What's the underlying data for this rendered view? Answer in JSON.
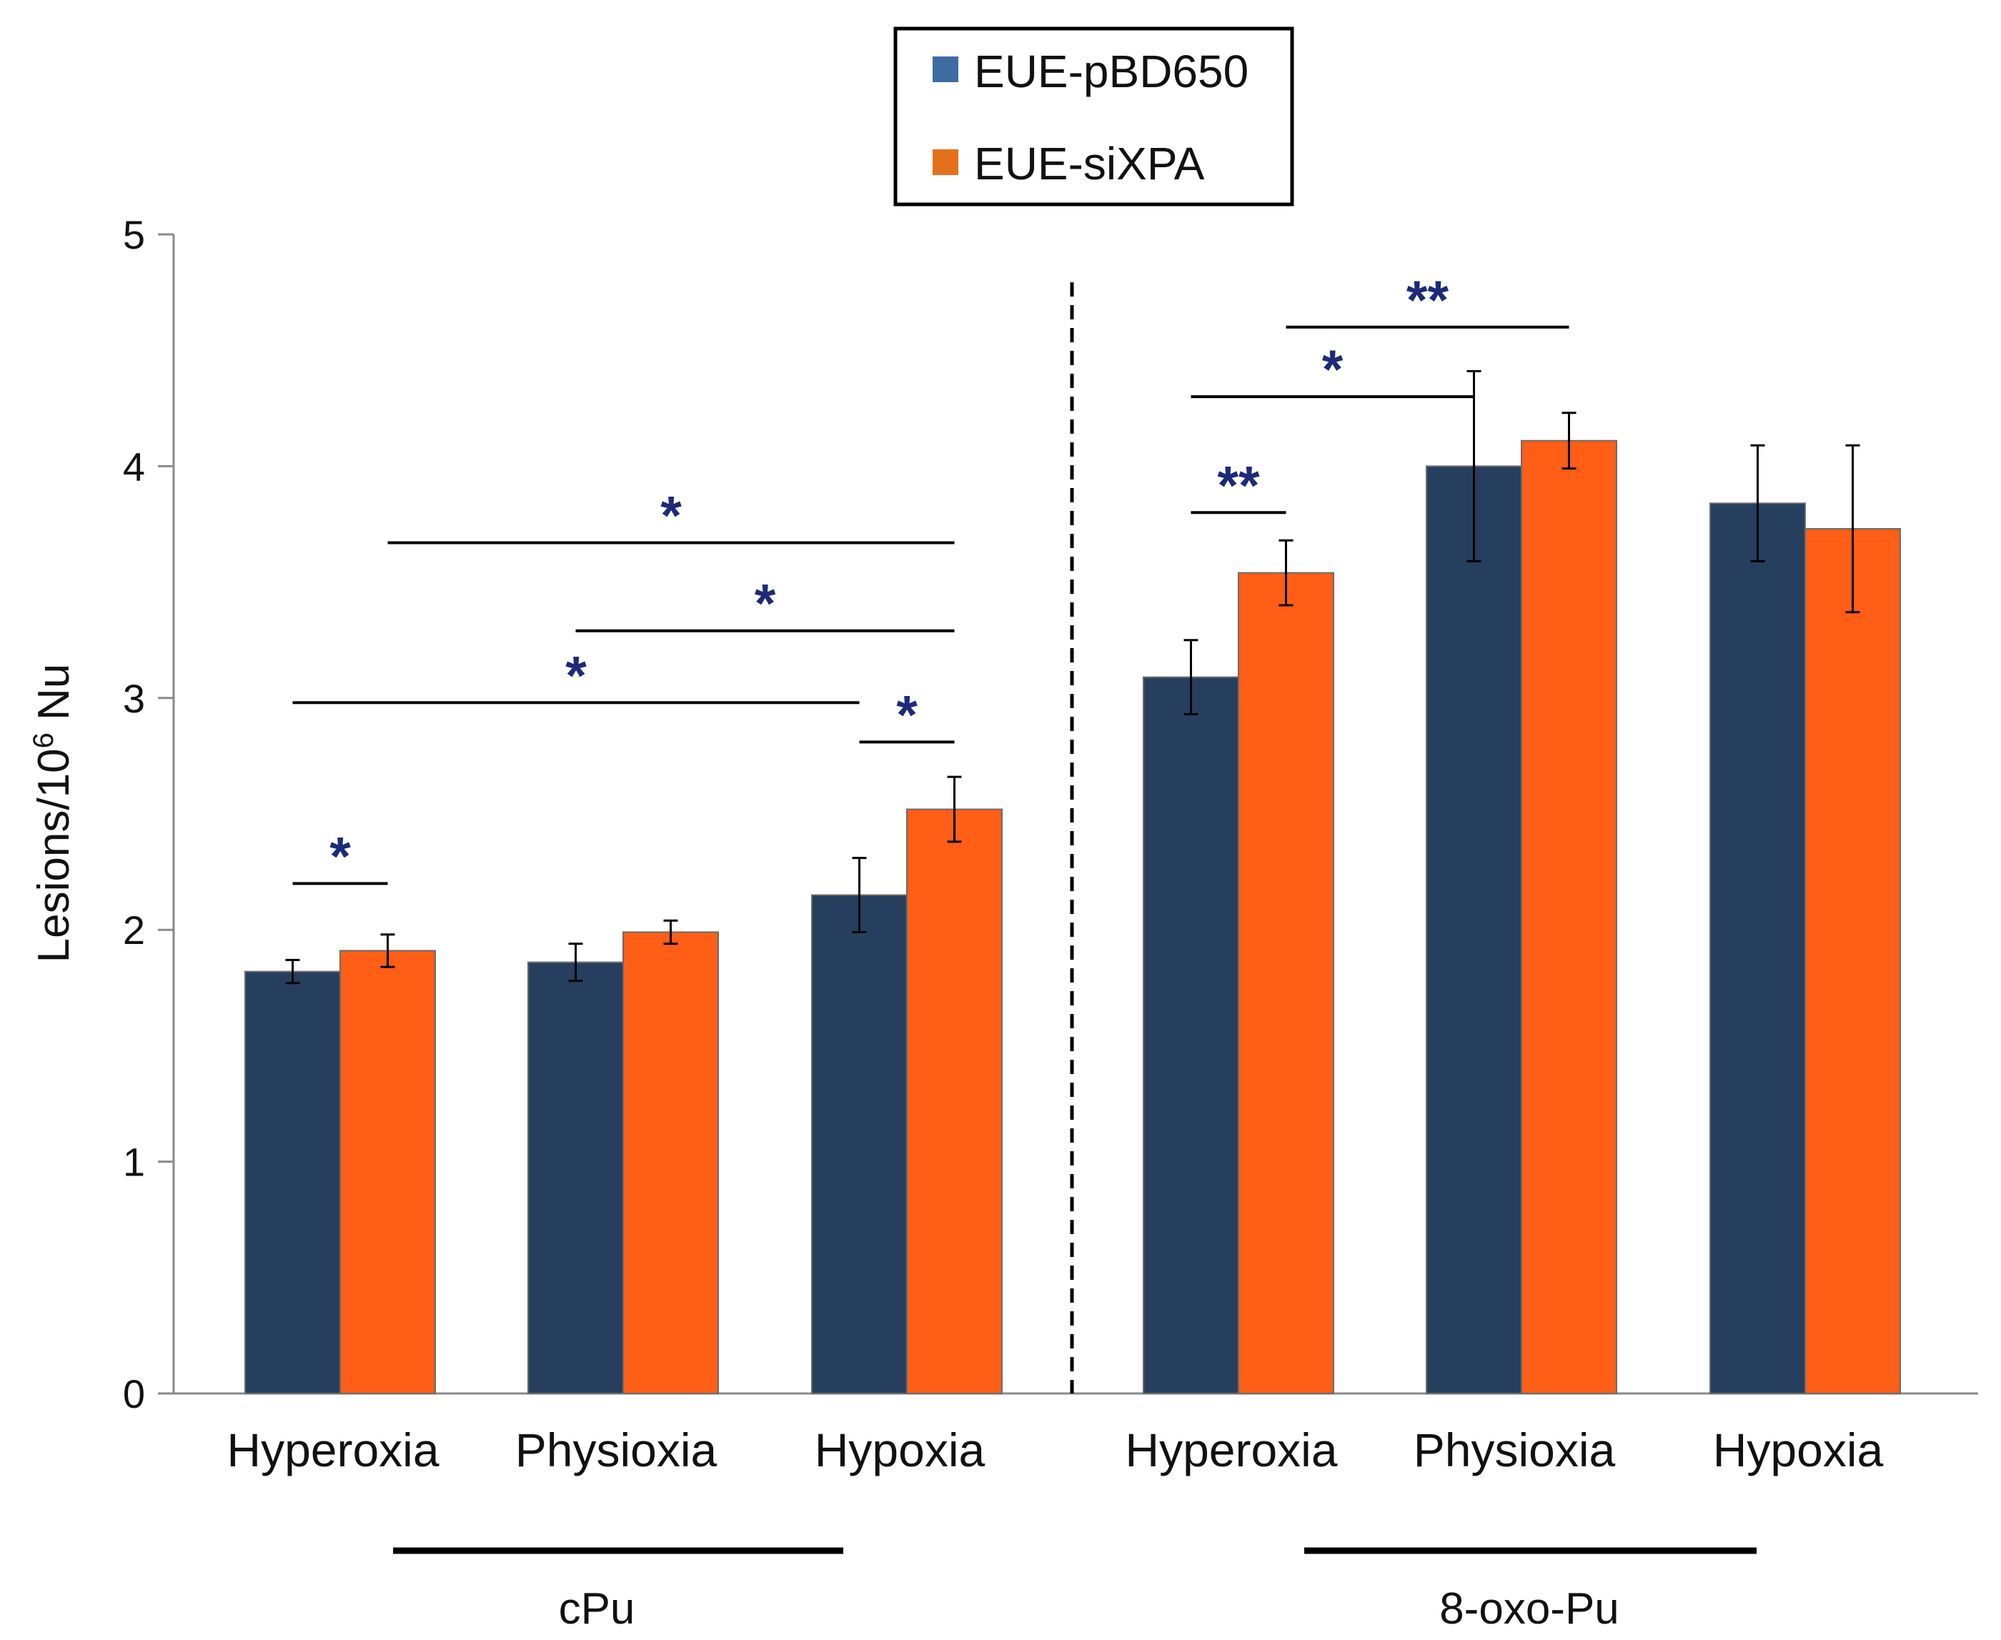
{
  "chart_data": {
    "type": "bar",
    "title": "",
    "xlabel": "",
    "ylabel": "Lesions/10",
    "ylabel_superscript": "6",
    "ylabel_suffix": " Nu",
    "ylim": [
      0,
      5
    ],
    "yticks": [
      "0",
      "1",
      "2",
      "3",
      "4",
      "5"
    ],
    "grid": false,
    "legend_position": "top-center",
    "categories": [
      "Hyperoxia",
      "Physioxia",
      "Hypoxia",
      "Hyperoxia",
      "Physioxia",
      "Hypoxia"
    ],
    "groups": [
      {
        "label": "cPu",
        "category_indices": [
          0,
          1,
          2
        ]
      },
      {
        "label": "8-oxo-Pu",
        "category_indices": [
          3,
          4,
          5
        ]
      }
    ],
    "series": [
      {
        "name": "EUE-pBD650",
        "color": "#273f5f",
        "legend_color": "#3f6ba3",
        "values": [
          1.82,
          1.86,
          2.15,
          3.09,
          4.0,
          3.84
        ],
        "errors": [
          0.05,
          0.08,
          0.16,
          0.16,
          0.41,
          0.25
        ]
      },
      {
        "name": "EUE-siXPA",
        "color": "#fe5e16",
        "legend_color": "#e4701c",
        "values": [
          1.91,
          1.99,
          2.52,
          3.54,
          4.11,
          3.73
        ],
        "errors": [
          0.07,
          0.05,
          0.14,
          0.14,
          0.12,
          0.36
        ]
      }
    ],
    "significance": [
      {
        "from_category": 0,
        "from_series": 0,
        "to_category": 0,
        "to_series": 1,
        "y": 2.2,
        "label": "*"
      },
      {
        "from_category": 0,
        "from_series": 0,
        "to_category": 2,
        "to_series": 0,
        "y": 2.98,
        "label": "*"
      },
      {
        "from_category": 2,
        "from_series": 0,
        "to_category": 2,
        "to_series": 1,
        "y": 2.81,
        "label": "*"
      },
      {
        "from_category": 1,
        "from_series": 0,
        "to_category": 2,
        "to_series": 1,
        "y": 3.29,
        "label": "*"
      },
      {
        "from_category": 0,
        "from_series": 1,
        "to_category": 2,
        "to_series": 1,
        "y": 3.67,
        "label": "*"
      },
      {
        "from_category": 3,
        "from_series": 0,
        "to_category": 3,
        "to_series": 1,
        "y": 3.8,
        "label": "**"
      },
      {
        "from_category": 3,
        "from_series": 0,
        "to_category": 4,
        "to_series": 0,
        "y": 4.3,
        "label": "*"
      },
      {
        "from_category": 3,
        "from_series": 1,
        "to_category": 4,
        "to_series": 1,
        "y": 4.6,
        "label": "**"
      }
    ],
    "divider": "dashed line between cPu and 8-oxo-Pu groups"
  }
}
